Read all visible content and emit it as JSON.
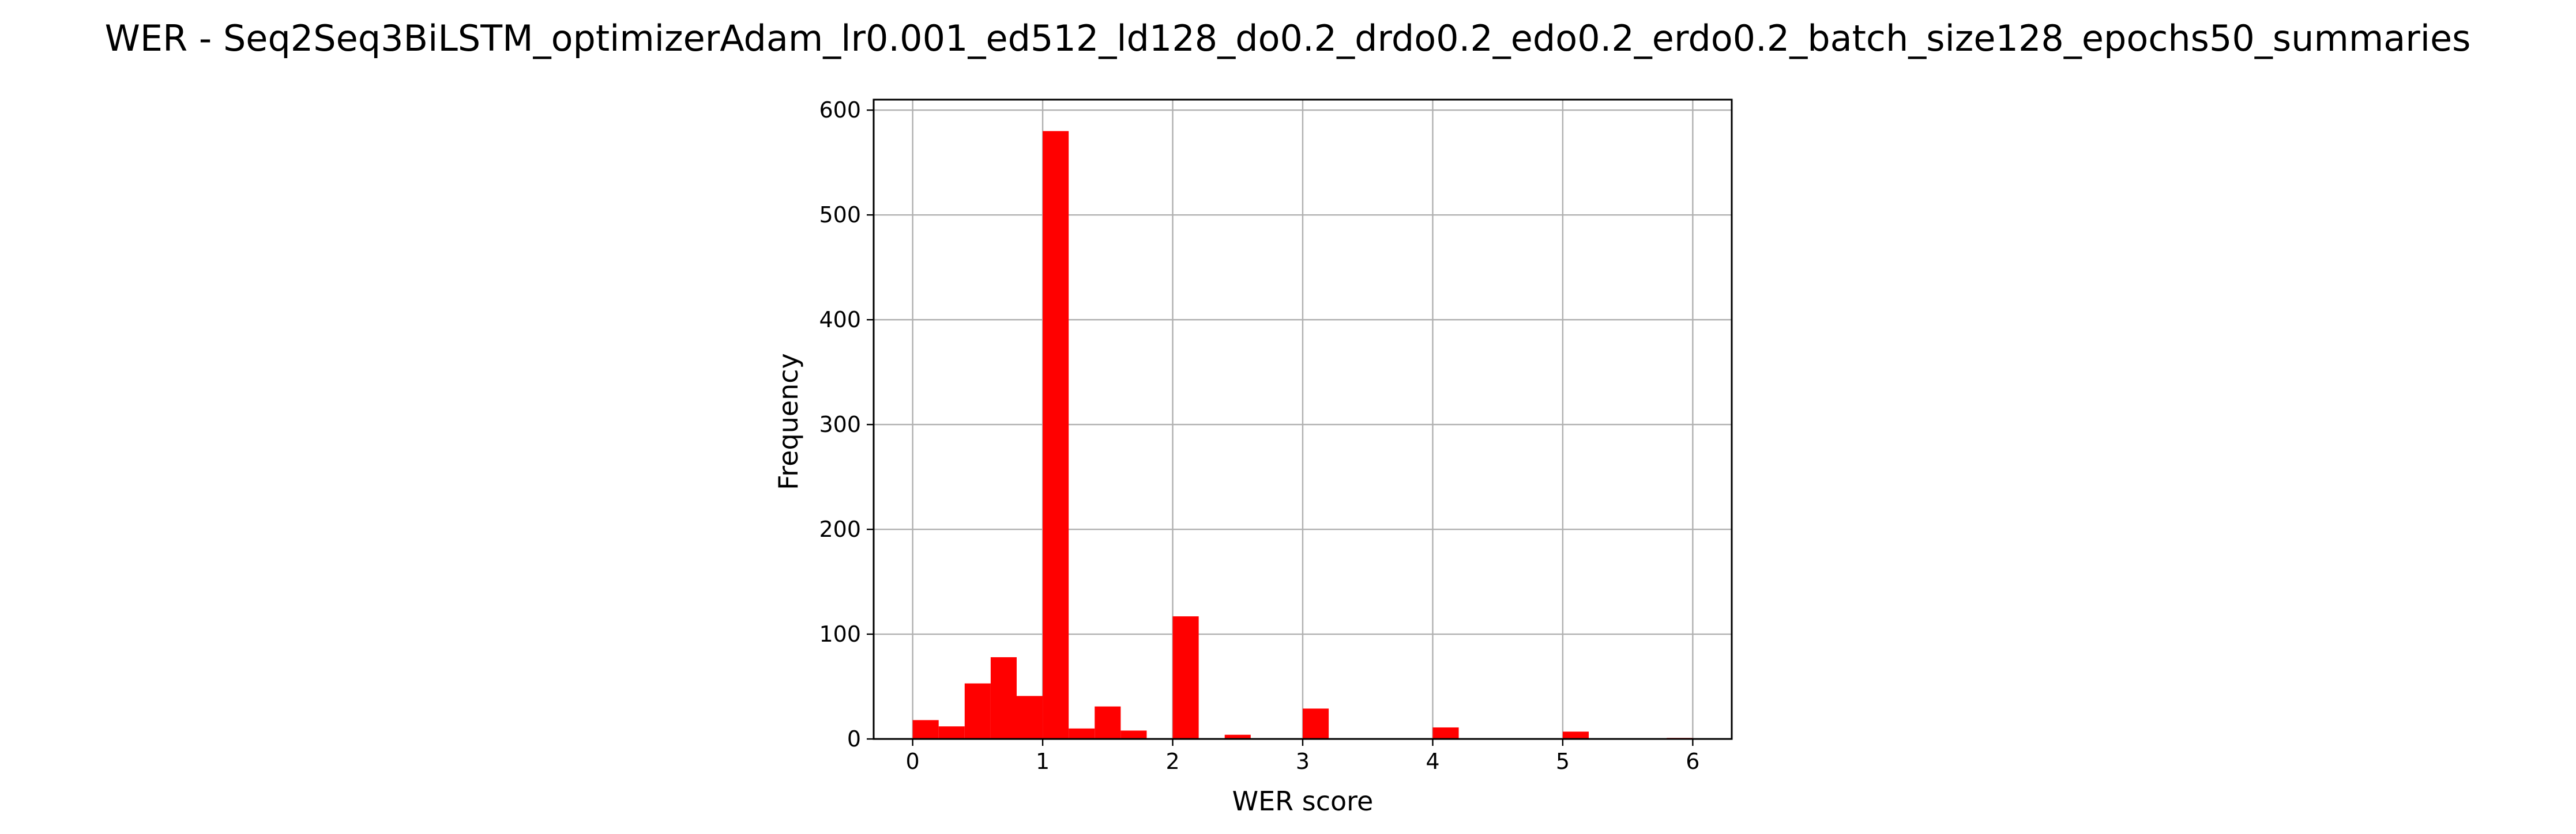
{
  "chart_data": {
    "type": "bar",
    "title": "WER - Seq2Seq3BiLSTM_optimizerAdam_lr0.001_ed512_ld128_do0.2_drdo0.2_edo0.2_erdo0.2_batch_size128_epochs50_summaries",
    "xlabel": "WER score",
    "ylabel": "Frequency",
    "xlim": [
      -0.3,
      6.3
    ],
    "ylim": [
      0,
      610
    ],
    "xticks": [
      0,
      1,
      2,
      3,
      4,
      5,
      6
    ],
    "yticks": [
      0,
      100,
      200,
      300,
      400,
      500,
      600
    ],
    "grid": true,
    "bar_color": "#ff0000",
    "bin_edges": [
      0,
      0.2,
      0.4,
      0.6,
      0.8,
      1.0,
      1.2,
      1.4,
      1.6,
      1.8,
      2.0,
      2.2,
      2.4,
      2.6,
      2.8,
      3.0,
      3.2,
      3.4,
      3.6,
      3.8,
      4.0,
      4.2,
      4.4,
      4.6,
      4.8,
      5.0,
      5.2,
      5.4,
      5.6,
      5.8,
      6.0
    ],
    "values": [
      18,
      12,
      53,
      78,
      41,
      580,
      10,
      31,
      8,
      0,
      117,
      0,
      4,
      0,
      0,
      29,
      0,
      0,
      0,
      0,
      11,
      0,
      0,
      0,
      0,
      7,
      0,
      0,
      0,
      1
    ]
  }
}
